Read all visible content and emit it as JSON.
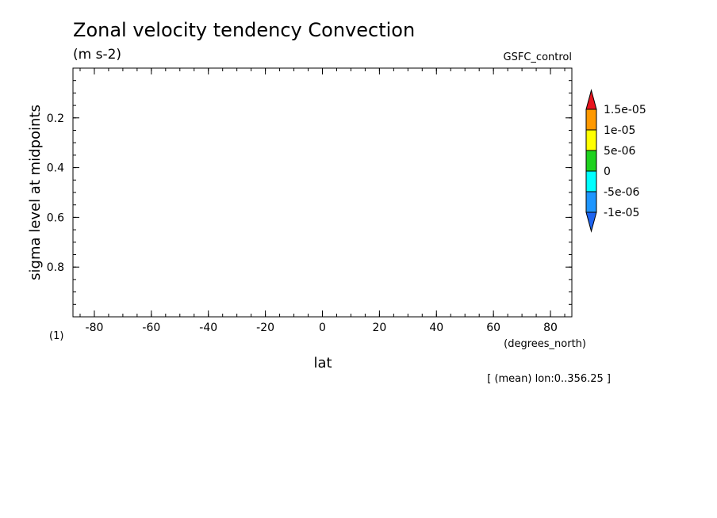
{
  "chart_data": {
    "type": "heatmap",
    "title": "Zonal velocity tendency Convection",
    "units": "(m s-2)",
    "run_label": "GSFC_control",
    "panel_label": "(1)",
    "xlabel": "lat",
    "xunits": "(degrees_north)",
    "ylabel": "sigma level at midpoints",
    "subset_note": "[ (mean) lon:0..356.25 ]",
    "xlim": [
      -87.5,
      87.5
    ],
    "ylim": [
      1.0,
      0.0
    ],
    "x_ticks": [
      "-80",
      "-60",
      "-40",
      "-20",
      "0",
      "20",
      "40",
      "60",
      "80"
    ],
    "x_tick_values": [
      -80,
      -60,
      -40,
      -20,
      0,
      20,
      40,
      60,
      80
    ],
    "y_ticks": [
      "0.2",
      "0.4",
      "0.6",
      "0.8"
    ],
    "y_tick_values": [
      0.2,
      0.4,
      0.6,
      0.8
    ],
    "colorbar": {
      "levels": [
        "1.5e-05",
        "1e-05",
        "5e-06",
        "0",
        "-5e-06",
        "-1e-05"
      ],
      "colors": [
        "#e8141e",
        "#ff9900",
        "#ffff00",
        "#1ed21e",
        "#00ffff",
        "#1e96ff",
        "#1e64f0"
      ]
    }
  }
}
